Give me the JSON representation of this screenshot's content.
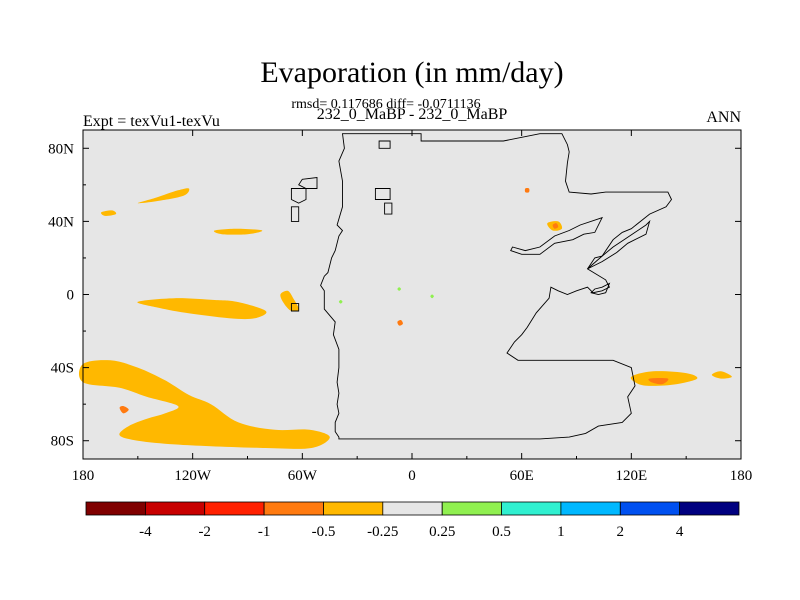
{
  "chart_data": {
    "type": "heatmap",
    "title": "Evaporation (in mm/day)",
    "subtitle_stats": "rmsd= 0.117686 diff= -0.0711136",
    "subtitle_case": "232_0_MaBP - 232_0_MaBP",
    "left_label": "Expt = texVu1-texVu",
    "right_label": "ANN",
    "x_axis": {
      "range": [
        -180,
        180
      ],
      "ticks": [
        -180,
        -120,
        -60,
        0,
        60,
        120,
        180
      ],
      "tick_labels": [
        "180",
        "120W",
        "60W",
        "0",
        "60E",
        "120E",
        "180"
      ]
    },
    "y_axis": {
      "range": [
        -90,
        90
      ],
      "ticks": [
        80,
        40,
        0,
        -40,
        -80
      ],
      "tick_labels": [
        "80N",
        "40N",
        "0",
        "40S",
        "80S"
      ]
    },
    "background_color": "#e6e6e6",
    "colorbar": {
      "colors": [
        "#800000",
        "#c80000",
        "#ff2000",
        "#ff7a10",
        "#ffb800",
        "#e6e6e6",
        "#90f050",
        "#30f0d0",
        "#00b8ff",
        "#0050f0",
        "#000080"
      ],
      "labels": [
        "-4",
        "-2",
        "-1",
        "-0.5",
        "-0.25",
        "0.25",
        "0.5",
        "1",
        "2",
        "4"
      ]
    },
    "anomaly_regions": [
      {
        "name": "north-pacific-patch-west",
        "value": -0.3,
        "lonlat": [
          [
            -170,
            45
          ],
          [
            -164,
            46
          ],
          [
            -162,
            44
          ],
          [
            -168,
            43
          ]
        ]
      },
      {
        "name": "north-pacific-patch-center",
        "value": -0.3,
        "lonlat": [
          [
            -150,
            50
          ],
          [
            -140,
            53
          ],
          [
            -128,
            57
          ],
          [
            -122,
            58
          ],
          [
            -125,
            54
          ],
          [
            -140,
            51
          ]
        ]
      },
      {
        "name": "north-pacific-patch-east",
        "value": -0.3,
        "lonlat": [
          [
            -108,
            35
          ],
          [
            -96,
            36
          ],
          [
            -82,
            35
          ],
          [
            -90,
            33
          ],
          [
            -104,
            33
          ]
        ]
      },
      {
        "name": "equatorial-pacific-band",
        "value": -0.3,
        "lonlat": [
          [
            -150,
            -4
          ],
          [
            -130,
            -2
          ],
          [
            -108,
            -3
          ],
          [
            -96,
            -4
          ],
          [
            -80,
            -9
          ],
          [
            -86,
            -13
          ],
          [
            -100,
            -13
          ],
          [
            -124,
            -10
          ],
          [
            -140,
            -7
          ]
        ]
      },
      {
        "name": "peru-coast-patch",
        "value": -0.3,
        "lonlat": [
          [
            -72,
            0
          ],
          [
            -68,
            2
          ],
          [
            -65,
            -2
          ],
          [
            -62,
            -8
          ],
          [
            -66,
            -9
          ],
          [
            -70,
            -5
          ]
        ]
      },
      {
        "name": "south-pacific-large-patch",
        "value": -0.3,
        "lonlat": [
          [
            -180,
            -38
          ],
          [
            -165,
            -36
          ],
          [
            -150,
            -40
          ],
          [
            -135,
            -47
          ],
          [
            -122,
            -55
          ],
          [
            -110,
            -60
          ],
          [
            -95,
            -70
          ],
          [
            -75,
            -74
          ],
          [
            -56,
            -74
          ],
          [
            -45,
            -78
          ],
          [
            -55,
            -84
          ],
          [
            -80,
            -84
          ],
          [
            -110,
            -83
          ],
          [
            -130,
            -82
          ],
          [
            -150,
            -80
          ],
          [
            -160,
            -77
          ],
          [
            -155,
            -72
          ],
          [
            -145,
            -68
          ],
          [
            -135,
            -65
          ],
          [
            -128,
            -61
          ],
          [
            -145,
            -56
          ],
          [
            -160,
            -51
          ],
          [
            -180,
            -48
          ]
        ]
      },
      {
        "name": "south-pacific-core",
        "value": -0.6,
        "lonlat": [
          [
            -160,
            -62
          ],
          [
            -158,
            -61
          ],
          [
            -155,
            -63
          ],
          [
            -158,
            -65
          ]
        ]
      },
      {
        "name": "south-indian-patch",
        "value": -0.3,
        "lonlat": [
          [
            120,
            -45
          ],
          [
            132,
            -42
          ],
          [
            150,
            -43
          ],
          [
            156,
            -46
          ],
          [
            145,
            -49
          ],
          [
            132,
            -50
          ],
          [
            124,
            -49
          ]
        ]
      },
      {
        "name": "south-indian-core",
        "value": -0.6,
        "lonlat": [
          [
            130,
            -46
          ],
          [
            140,
            -46
          ],
          [
            137,
            -49
          ],
          [
            131,
            -48
          ]
        ]
      },
      {
        "name": "tasman-patch",
        "value": -0.3,
        "lonlat": [
          [
            164,
            -44
          ],
          [
            169,
            -42
          ],
          [
            175,
            -45
          ],
          [
            169,
            -46
          ]
        ]
      },
      {
        "name": "caspian-patch",
        "value": -0.3,
        "lonlat": [
          [
            74,
            39
          ],
          [
            80,
            40
          ],
          [
            82,
            36
          ],
          [
            77,
            35
          ]
        ]
      },
      {
        "name": "caspian-core",
        "value": -0.6,
        "lonlat": [
          [
            77,
            38
          ],
          [
            79,
            39
          ],
          [
            80,
            37
          ],
          [
            78,
            36
          ]
        ]
      },
      {
        "name": "arctic-tiny-patch",
        "value": -0.6,
        "lonlat": [
          [
            62,
            58
          ],
          [
            64,
            58
          ],
          [
            64,
            56
          ],
          [
            62,
            56
          ]
        ]
      },
      {
        "name": "atlantic-tiny-patch",
        "value": -0.6,
        "lonlat": [
          [
            -8,
            -15
          ],
          [
            -6,
            -14
          ],
          [
            -5,
            -16
          ],
          [
            -7,
            -17
          ]
        ]
      },
      {
        "name": "africa-green-speck-1",
        "value": 0.3,
        "lonlat": [
          [
            -8,
            3
          ],
          [
            -7,
            4
          ],
          [
            -6,
            3
          ],
          [
            -7,
            2
          ]
        ]
      },
      {
        "name": "africa-green-speck-2",
        "value": 0.3,
        "lonlat": [
          [
            10,
            -1
          ],
          [
            11,
            0
          ],
          [
            12,
            -1
          ],
          [
            11,
            -2
          ]
        ]
      },
      {
        "name": "atlantic-green-speck",
        "value": 0.3,
        "lonlat": [
          [
            -40,
            -4
          ],
          [
            -39,
            -3
          ],
          [
            -38,
            -4
          ],
          [
            -39,
            -5
          ]
        ]
      }
    ],
    "continent_outlines": [
      {
        "name": "main-continent",
        "lonlat": [
          [
            -38,
            88
          ],
          [
            5,
            88
          ],
          [
            5,
            84
          ],
          [
            50,
            84
          ],
          [
            70,
            88
          ],
          [
            82,
            88
          ],
          [
            85,
            82
          ],
          [
            86,
            78
          ],
          [
            85,
            72
          ],
          [
            84,
            62
          ],
          [
            86,
            56
          ],
          [
            98,
            55
          ],
          [
            106,
            56
          ],
          [
            140,
            56
          ],
          [
            142,
            52
          ],
          [
            139,
            48
          ],
          [
            130,
            44
          ],
          [
            120,
            36
          ],
          [
            115,
            34
          ],
          [
            110,
            30
          ],
          [
            104,
            21
          ],
          [
            100,
            20
          ],
          [
            96,
            14
          ],
          [
            106,
            8
          ],
          [
            108,
            4
          ],
          [
            104,
            2
          ],
          [
            99,
            1
          ],
          [
            96,
            4
          ],
          [
            90,
            2
          ],
          [
            85,
            0
          ],
          [
            80,
            2
          ],
          [
            76,
            4
          ],
          [
            75,
            -2
          ],
          [
            68,
            -10
          ],
          [
            63,
            -18
          ],
          [
            60,
            -22
          ],
          [
            56,
            -26
          ],
          [
            52,
            -32
          ],
          [
            58,
            -36
          ],
          [
            80,
            -36
          ],
          [
            110,
            -36
          ],
          [
            120,
            -40
          ],
          [
            122,
            -50
          ],
          [
            118,
            -56
          ],
          [
            120,
            -65
          ],
          [
            115,
            -70
          ],
          [
            102,
            -72
          ],
          [
            95,
            -76
          ],
          [
            86,
            -78
          ],
          [
            70,
            -79
          ],
          [
            30,
            -79
          ],
          [
            -40,
            -79
          ],
          [
            -40,
            -78
          ],
          [
            -42,
            -75
          ],
          [
            -42,
            -70
          ],
          [
            -40,
            -65
          ],
          [
            -41,
            -60
          ],
          [
            -40,
            -54
          ],
          [
            -41,
            -48
          ],
          [
            -40,
            -40
          ],
          [
            -40,
            -30
          ],
          [
            -43,
            -22
          ],
          [
            -42,
            -15
          ],
          [
            -48,
            -8
          ],
          [
            -48,
            2
          ],
          [
            -50,
            5
          ],
          [
            -48,
            10
          ],
          [
            -46,
            12
          ],
          [
            -44,
            20
          ],
          [
            -42,
            24
          ],
          [
            -40,
            32
          ],
          [
            -38,
            35
          ],
          [
            -41,
            38
          ],
          [
            -38,
            48
          ],
          [
            -38,
            62
          ],
          [
            -40,
            73
          ],
          [
            -37,
            80
          ],
          [
            -38,
            88
          ]
        ]
      },
      {
        "name": "inland-sea-ne",
        "lonlat": [
          [
            55,
            26
          ],
          [
            62,
            24
          ],
          [
            70,
            26
          ],
          [
            78,
            32
          ],
          [
            86,
            35
          ],
          [
            92,
            38
          ],
          [
            104,
            42
          ],
          [
            100,
            34
          ],
          [
            94,
            33
          ],
          [
            88,
            30
          ],
          [
            78,
            28
          ],
          [
            70,
            22
          ],
          [
            60,
            22
          ],
          [
            54,
            24
          ]
        ]
      },
      {
        "name": "inland-sea-e",
        "lonlat": [
          [
            96,
            14
          ],
          [
            104,
            21
          ],
          [
            110,
            26
          ],
          [
            116,
            30
          ],
          [
            122,
            34
          ],
          [
            128,
            38
          ],
          [
            130,
            40
          ],
          [
            128,
            33
          ],
          [
            118,
            28
          ],
          [
            112,
            23
          ],
          [
            104,
            18
          ]
        ]
      },
      {
        "name": "east-island",
        "lonlat": [
          [
            100,
            3
          ],
          [
            104,
            4
          ],
          [
            108,
            6
          ],
          [
            106,
            1
          ],
          [
            102,
            0
          ],
          [
            98,
            1
          ]
        ]
      },
      {
        "name": "arctic-island",
        "lonlat": [
          [
            -18,
            84
          ],
          [
            -12,
            84
          ],
          [
            -12,
            80
          ],
          [
            -18,
            80
          ]
        ]
      },
      {
        "name": "nw-archipelago-1",
        "lonlat": [
          [
            -60,
            63
          ],
          [
            -52,
            64
          ],
          [
            -52,
            58
          ],
          [
            -58,
            58
          ],
          [
            -62,
            60
          ]
        ]
      },
      {
        "name": "nw-archipelago-2",
        "lonlat": [
          [
            -66,
            58
          ],
          [
            -58,
            58
          ],
          [
            -58,
            52
          ],
          [
            -62,
            50
          ],
          [
            -66,
            52
          ]
        ]
      },
      {
        "name": "nw-archipelago-3",
        "lonlat": [
          [
            -66,
            48
          ],
          [
            -62,
            48
          ],
          [
            -62,
            40
          ],
          [
            -66,
            40
          ]
        ]
      },
      {
        "name": "west-island-1",
        "lonlat": [
          [
            -20,
            58
          ],
          [
            -12,
            58
          ],
          [
            -12,
            52
          ],
          [
            -20,
            52
          ]
        ]
      },
      {
        "name": "west-island-2",
        "lonlat": [
          [
            -15,
            50
          ],
          [
            -11,
            50
          ],
          [
            -11,
            44
          ],
          [
            -15,
            44
          ]
        ]
      },
      {
        "name": "peru-islet",
        "lonlat": [
          [
            -66,
            -5
          ],
          [
            -62,
            -5
          ],
          [
            -62,
            -9
          ],
          [
            -66,
            -9
          ]
        ]
      }
    ]
  }
}
